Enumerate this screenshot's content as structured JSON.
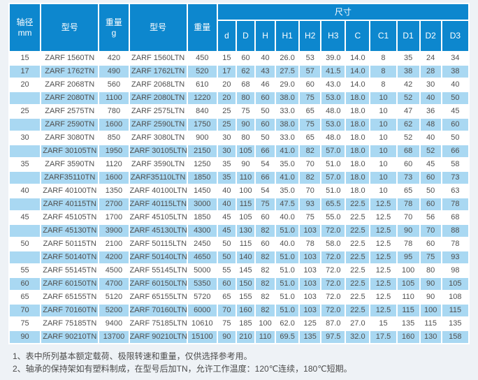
{
  "colors": {
    "header_blue": "#0d87ce",
    "stripe_blue": "#a9d8f2",
    "text_gray": "#4f4f4f",
    "page_bg": "#eef2f6"
  },
  "table": {
    "header": {
      "shaft_line1": "轴径",
      "shaft_line2": "mm",
      "model1": "型号",
      "weight1_line1": "重量",
      "weight1_line2": "g",
      "model2": "型号",
      "weight2": "重量",
      "dims_group": "尺寸",
      "dim_cols": [
        "d",
        "D",
        "H",
        "H1",
        "H2",
        "H3",
        "C",
        "C1",
        "D1",
        "D2",
        "D3"
      ]
    },
    "col_keys": [
      "shaft-mm",
      "model-tn",
      "weight-g",
      "model-ltn",
      "weight",
      "d",
      "D",
      "H",
      "H1",
      "H2",
      "H3",
      "C",
      "C1",
      "D1",
      "D2",
      "D3"
    ],
    "rows": [
      [
        "15",
        "ZARF 1560TN",
        "420",
        "ZARF 1560LTN",
        "450",
        "15",
        "60",
        "40",
        "26.0",
        "53",
        "39.0",
        "14.0",
        "8",
        "35",
        "24",
        "34"
      ],
      [
        "17",
        "ZARF 1762TN",
        "490",
        "ZARF 1762LTN",
        "520",
        "17",
        "62",
        "43",
        "27.5",
        "57",
        "41.5",
        "14.0",
        "8",
        "38",
        "28",
        "38"
      ],
      [
        "20",
        "ZARF 2068TN",
        "560",
        "ZARF 2068LTN",
        "610",
        "20",
        "68",
        "46",
        "29.0",
        "60",
        "43.0",
        "14.0",
        "8",
        "42",
        "30",
        "40"
      ],
      [
        "",
        "ZARF 2080TN",
        "1100",
        "ZARF 2080LTN",
        "1220",
        "20",
        "80",
        "60",
        "38.0",
        "75",
        "53.0",
        "18.0",
        "10",
        "52",
        "40",
        "50"
      ],
      [
        "25",
        "ZARF 2575TN",
        "780",
        "ZARF 2575LTN",
        "840",
        "25",
        "75",
        "50",
        "33.0",
        "65",
        "48.0",
        "18.0",
        "10",
        "47",
        "36",
        "45"
      ],
      [
        "",
        "ZARF 2590TN",
        "1600",
        "ZARF 2590LTN",
        "1750",
        "25",
        "90",
        "60",
        "38.0",
        "75",
        "53.0",
        "18.0",
        "10",
        "62",
        "48",
        "60"
      ],
      [
        "30",
        "ZARF 3080TN",
        "850",
        "ZARF 3080LTN",
        "900",
        "30",
        "80",
        "50",
        "33.0",
        "65",
        "48.0",
        "18.0",
        "10",
        "52",
        "40",
        "50"
      ],
      [
        "",
        "ZARF 30105TN",
        "1950",
        "ZARF 30105LTN",
        "2150",
        "30",
        "105",
        "66",
        "41.0",
        "82",
        "57.0",
        "18.0",
        "10",
        "68",
        "52",
        "66"
      ],
      [
        "35",
        "ZARF 3590TN",
        "1120",
        "ZARF 3590LTN",
        "1250",
        "35",
        "90",
        "54",
        "35.0",
        "70",
        "51.0",
        "18.0",
        "10",
        "60",
        "45",
        "58"
      ],
      [
        "",
        "ZARF35110TN",
        "1600",
        "ZARF35110LTN",
        "1850",
        "35",
        "110",
        "66",
        "41.0",
        "82",
        "57.0",
        "18.0",
        "10",
        "73",
        "60",
        "73"
      ],
      [
        "40",
        "ZARF 40100TN",
        "1350",
        "ZARF 40100LTN",
        "1450",
        "40",
        "100",
        "54",
        "35.0",
        "70",
        "51.0",
        "18.0",
        "10",
        "65",
        "50",
        "63"
      ],
      [
        "",
        "ZARF 40115TN",
        "2700",
        "ZARF 40115LTN",
        "3000",
        "40",
        "115",
        "75",
        "47.5",
        "93",
        "65.5",
        "22.5",
        "12.5",
        "78",
        "60",
        "78"
      ],
      [
        "45",
        "ZARF 45105TN",
        "1700",
        "ZARF 45105LTN",
        "1850",
        "45",
        "105",
        "60",
        "40.0",
        "75",
        "55.0",
        "22.5",
        "12.5",
        "70",
        "56",
        "68"
      ],
      [
        "",
        "ZARF 45130TN",
        "3900",
        "ZARF 45130LTN",
        "4300",
        "45",
        "130",
        "82",
        "51.0",
        "103",
        "72.0",
        "22.5",
        "12.5",
        "90",
        "70",
        "88"
      ],
      [
        "50",
        "ZARF 50115TN",
        "2100",
        "ZARF 50115LTN",
        "2450",
        "50",
        "115",
        "60",
        "40.0",
        "78",
        "58.0",
        "22.5",
        "12.5",
        "78",
        "60",
        "78"
      ],
      [
        "",
        "ZARF 50140TN",
        "4200",
        "ZARF 50140LTN",
        "4650",
        "50",
        "140",
        "82",
        "51.0",
        "103",
        "72.0",
        "22.5",
        "12.5",
        "95",
        "75",
        "93"
      ],
      [
        "55",
        "ZARF 55145TN",
        "4500",
        "ZARF 55145LTN",
        "5000",
        "55",
        "145",
        "82",
        "51.0",
        "103",
        "72.0",
        "22.5",
        "12.5",
        "100",
        "80",
        "98"
      ],
      [
        "60",
        "ZARF 60150TN",
        "4700",
        "ZARF 60150LTN",
        "5350",
        "60",
        "150",
        "82",
        "51.0",
        "103",
        "72.0",
        "22.5",
        "12.5",
        "105",
        "90",
        "105"
      ],
      [
        "65",
        "ZARF 65155TN",
        "5120",
        "ZARF 65155LTN",
        "5720",
        "65",
        "155",
        "82",
        "51.0",
        "103",
        "72.0",
        "22.5",
        "12.5",
        "110",
        "90",
        "108"
      ],
      [
        "70",
        "ZARF 70160TN",
        "5200",
        "ZARF 70160LTN",
        "6000",
        "70",
        "160",
        "82",
        "51.0",
        "103",
        "72.0",
        "22.5",
        "12.5",
        "115",
        "100",
        "115"
      ],
      [
        "75",
        "ZARF 75185TN",
        "9400",
        "ZARF 75185LTN",
        "10610",
        "75",
        "185",
        "100",
        "62.0",
        "125",
        "87.0",
        "27.0",
        "15",
        "135",
        "115",
        "135"
      ],
      [
        "90",
        "ZARF 90210TN",
        "13700",
        "ZARF 90210LTN",
        "15100",
        "90",
        "210",
        "110",
        "69.5",
        "135",
        "97.5",
        "32.0",
        "17.5",
        "160",
        "130",
        "158"
      ]
    ]
  },
  "notes": [
    "1、表中所列基本额定载荷、极限转速和重量，仅供选择参考用。",
    "2、轴承的保持架如有塑料制成，在型号后加TN，允许工作温度：120℃连续，180℃短期。"
  ]
}
